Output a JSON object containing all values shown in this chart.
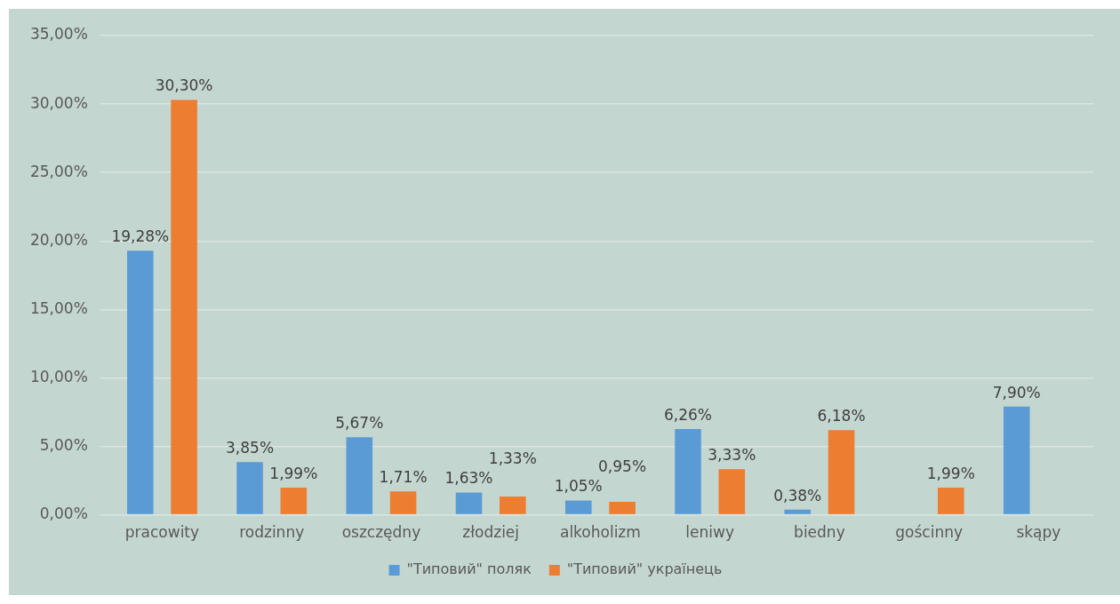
{
  "chart_data": {
    "type": "bar",
    "categories": [
      "pracowity",
      "rodzinny",
      "oszczędny",
      "złodziej",
      "alkoholizm",
      "leniwy",
      "biedny",
      "gościnny",
      "skąpy"
    ],
    "series": [
      {
        "name": "\"Типовий\" поляк",
        "color": "#5b9bd5",
        "values": [
          19.28,
          3.85,
          5.67,
          1.63,
          1.05,
          6.26,
          0.38,
          null,
          7.9
        ],
        "value_labels": [
          "19,28%",
          "3,85%",
          "5,67%",
          "1,63%",
          "1,05%",
          "6,26%",
          "0,38%",
          null,
          "7,90%"
        ]
      },
      {
        "name": "\"Типовий\" українець",
        "color": "#ed7d31",
        "values": [
          30.3,
          1.99,
          1.71,
          1.33,
          0.95,
          3.33,
          6.18,
          1.99,
          null
        ],
        "value_labels": [
          "30,30%",
          "1,99%",
          "1,71%",
          "1,33%",
          "0,95%",
          "3,33%",
          "6,18%",
          "1,99%",
          null
        ]
      }
    ],
    "ylim": [
      0,
      35
    ],
    "yticks": [
      {
        "value": 0,
        "label": "0,00%"
      },
      {
        "value": 5,
        "label": "5,00%"
      },
      {
        "value": 10,
        "label": "10,00%"
      },
      {
        "value": 15,
        "label": "15,00%"
      },
      {
        "value": 20,
        "label": "20,00%"
      },
      {
        "value": 25,
        "label": "25,00%"
      },
      {
        "value": 30,
        "label": "30,00%"
      },
      {
        "value": 35,
        "label": "35,00%"
      }
    ],
    "grid": "y",
    "legend": "bottom"
  }
}
